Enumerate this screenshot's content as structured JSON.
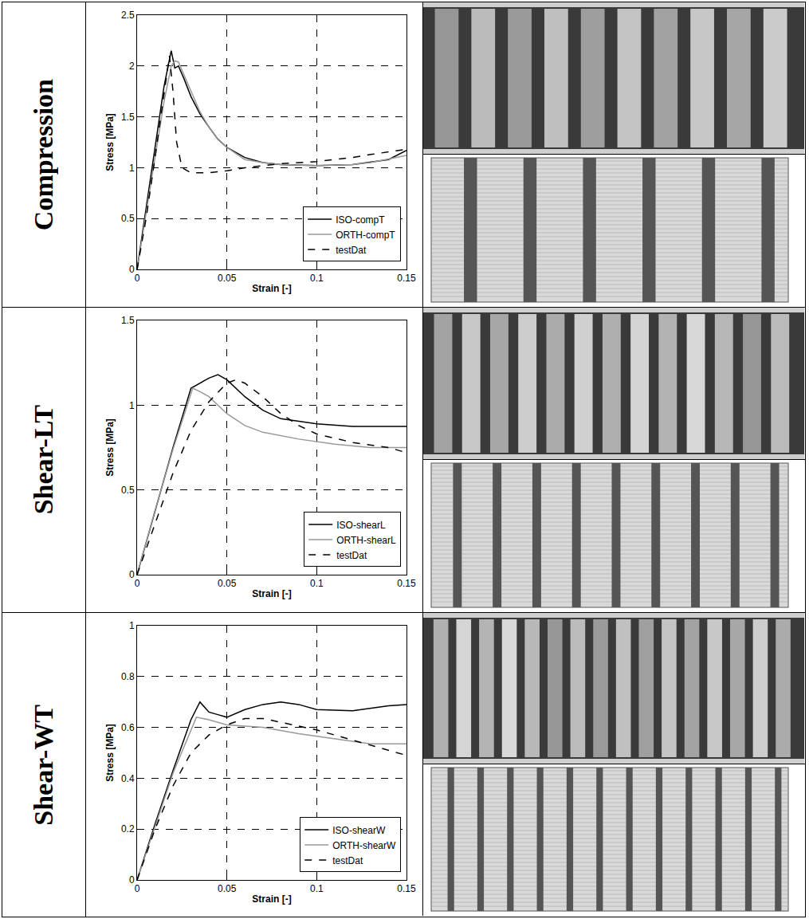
{
  "chart_data": [
    {
      "type": "line",
      "title": "Compression",
      "x_label": "Strain [-]",
      "y_label": "Stress [MPa]",
      "xlim": [
        0,
        0.15
      ],
      "xticks": [
        0,
        0.05,
        0.1,
        0.15
      ],
      "ylim": [
        0,
        2.5
      ],
      "yticks": [
        0,
        0.5,
        1,
        1.5,
        2,
        2.5
      ],
      "grid": true,
      "legend": "lower right",
      "series": [
        {
          "name": "ISO-compT",
          "color": "#000000",
          "line_style": "solid",
          "x": [
            0,
            0.005,
            0.01,
            0.015,
            0.019,
            0.021,
            0.023,
            0.026,
            0.03,
            0.035,
            0.04,
            0.045,
            0.05,
            0.06,
            0.07,
            0.08,
            0.1,
            0.12,
            0.14,
            0.15
          ],
          "values": [
            0,
            0.6,
            1.2,
            1.8,
            2.15,
            1.98,
            2.0,
            1.88,
            1.7,
            1.53,
            1.4,
            1.28,
            1.2,
            1.1,
            1.05,
            1.03,
            1.02,
            1.03,
            1.08,
            1.17
          ]
        },
        {
          "name": "ORTH-compT",
          "color": "#999999",
          "line_style": "solid",
          "x": [
            0,
            0.005,
            0.01,
            0.015,
            0.019,
            0.021,
            0.023,
            0.026,
            0.03,
            0.035,
            0.04,
            0.045,
            0.05,
            0.06,
            0.07,
            0.08,
            0.1,
            0.12,
            0.13,
            0.15
          ],
          "values": [
            0,
            0.55,
            1.1,
            1.65,
            2.0,
            2.05,
            2.04,
            1.92,
            1.75,
            1.55,
            1.4,
            1.28,
            1.2,
            1.08,
            1.05,
            1.03,
            1.02,
            1.03,
            1.05,
            1.12
          ]
        },
        {
          "name": "testDat",
          "color": "#000000",
          "line_style": "dashed",
          "x": [
            0,
            0.005,
            0.01,
            0.015,
            0.018,
            0.02,
            0.022,
            0.025,
            0.03,
            0.04,
            0.05,
            0.06,
            0.07,
            0.08,
            0.1,
            0.12,
            0.13,
            0.15
          ],
          "values": [
            0,
            0.5,
            1.1,
            1.75,
            2.1,
            1.75,
            1.25,
            1.0,
            0.95,
            0.95,
            0.97,
            1.0,
            1.02,
            1.04,
            1.06,
            1.1,
            1.13,
            1.18
          ]
        }
      ]
    },
    {
      "type": "line",
      "title": "Shear-LT",
      "x_label": "Strain [-]",
      "y_label": "Stress [MPa]",
      "xlim": [
        0,
        0.15
      ],
      "xticks": [
        0,
        0.05,
        0.1,
        0.15
      ],
      "ylim": [
        0,
        1.5
      ],
      "yticks": [
        0,
        0.5,
        1,
        1.5
      ],
      "grid": true,
      "legend": "lower right",
      "series": [
        {
          "name": "ISO-shearL",
          "color": "#000000",
          "line_style": "solid",
          "x": [
            0,
            0.01,
            0.02,
            0.03,
            0.035,
            0.04,
            0.045,
            0.05,
            0.06,
            0.07,
            0.08,
            0.1,
            0.12,
            0.15
          ],
          "values": [
            0,
            0.38,
            0.75,
            1.1,
            1.13,
            1.16,
            1.18,
            1.15,
            1.05,
            0.97,
            0.92,
            0.89,
            0.875,
            0.875
          ]
        },
        {
          "name": "ORTH-shearL",
          "color": "#999999",
          "line_style": "solid",
          "x": [
            0,
            0.01,
            0.02,
            0.031,
            0.035,
            0.04,
            0.05,
            0.06,
            0.07,
            0.09,
            0.11,
            0.13,
            0.15
          ],
          "values": [
            0,
            0.38,
            0.74,
            1.1,
            1.08,
            1.05,
            0.95,
            0.88,
            0.84,
            0.8,
            0.77,
            0.75,
            0.75
          ]
        },
        {
          "name": "testDat",
          "color": "#000000",
          "line_style": "dashed",
          "x": [
            0,
            0.01,
            0.02,
            0.03,
            0.04,
            0.05,
            0.055,
            0.06,
            0.07,
            0.08,
            0.09,
            0.1,
            0.12,
            0.14,
            0.15
          ],
          "values": [
            0,
            0.3,
            0.6,
            0.85,
            1.02,
            1.13,
            1.15,
            1.13,
            1.05,
            0.95,
            0.88,
            0.83,
            0.78,
            0.75,
            0.72
          ]
        }
      ]
    },
    {
      "type": "line",
      "title": "Shear-WT",
      "x_label": "Strain [-]",
      "y_label": "Stress [MPa]",
      "xlim": [
        0,
        0.15
      ],
      "xticks": [
        0,
        0.05,
        0.1,
        0.15
      ],
      "ylim": [
        0,
        1
      ],
      "yticks": [
        0,
        0.2,
        0.4,
        0.6,
        0.8,
        1
      ],
      "grid": true,
      "legend": "lower right",
      "series": [
        {
          "name": "ISO-shearW",
          "color": "#000000",
          "line_style": "solid",
          "x": [
            0,
            0.01,
            0.02,
            0.03,
            0.035,
            0.04,
            0.045,
            0.05,
            0.06,
            0.07,
            0.08,
            0.09,
            0.1,
            0.12,
            0.14,
            0.15
          ],
          "values": [
            0,
            0.22,
            0.43,
            0.63,
            0.7,
            0.66,
            0.65,
            0.64,
            0.67,
            0.69,
            0.7,
            0.69,
            0.67,
            0.665,
            0.685,
            0.69
          ]
        },
        {
          "name": "ORTH-shearW",
          "color": "#999999",
          "line_style": "solid",
          "x": [
            0,
            0.01,
            0.02,
            0.033,
            0.04,
            0.05,
            0.07,
            0.09,
            0.11,
            0.13,
            0.15
          ],
          "values": [
            0,
            0.21,
            0.42,
            0.64,
            0.63,
            0.61,
            0.6,
            0.575,
            0.555,
            0.535,
            0.535
          ]
        },
        {
          "name": "testDat",
          "color": "#000000",
          "line_style": "dashed",
          "x": [
            0,
            0.01,
            0.02,
            0.03,
            0.04,
            0.05,
            0.06,
            0.07,
            0.08,
            0.1,
            0.12,
            0.14,
            0.15
          ],
          "values": [
            0,
            0.2,
            0.37,
            0.5,
            0.57,
            0.61,
            0.635,
            0.635,
            0.62,
            0.59,
            0.55,
            0.51,
            0.49
          ]
        }
      ]
    }
  ]
}
